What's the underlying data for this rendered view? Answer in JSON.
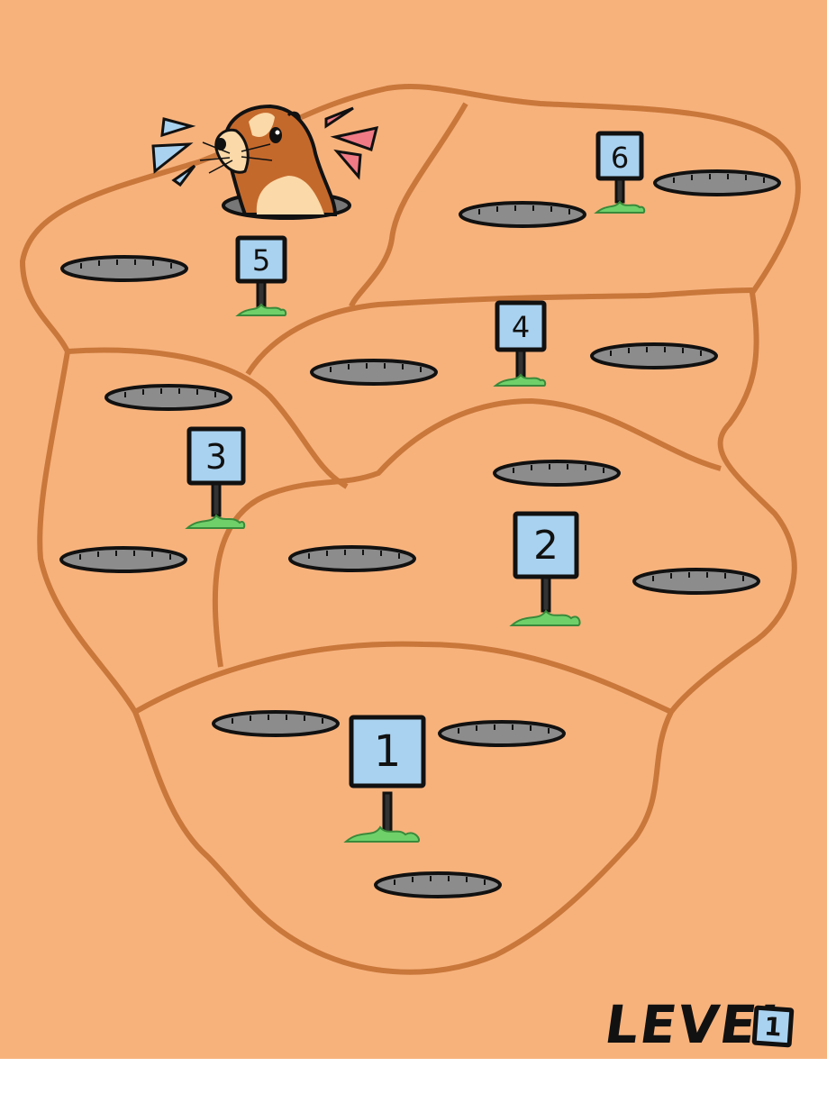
{
  "level": {
    "label": "LEVEL",
    "number": "1"
  },
  "signs": [
    {
      "label": "1"
    },
    {
      "label": "2"
    },
    {
      "label": "3"
    },
    {
      "label": "4"
    },
    {
      "label": "5"
    },
    {
      "label": "6"
    }
  ],
  "colors": {
    "ground": "#f7b27c",
    "border": "#c9773a",
    "sign": "#a9d2f0",
    "hole": "#8c8c8c",
    "grass": "#6fd06a",
    "gopher": "#c4692c"
  }
}
